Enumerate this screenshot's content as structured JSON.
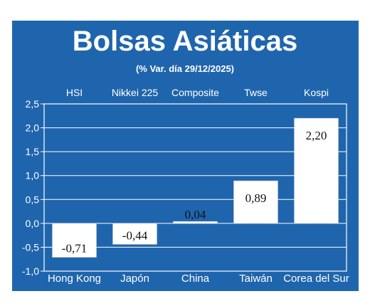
{
  "chart_data": {
    "type": "bar",
    "title": "Bolsas Asiáticas",
    "subtitle": "(% Var. día  29/12/2025)",
    "categories": [
      "Hong Kong",
      "Japón",
      "China",
      "Taiwán",
      "Corea del Sur"
    ],
    "index_names": [
      "HSI",
      "Nikkei 225",
      "Composite",
      "Twse",
      "Kospi"
    ],
    "values": [
      -0.71,
      -0.44,
      0.04,
      0.89,
      2.2
    ],
    "value_labels": [
      "-0,71",
      "-0,44",
      "0,04",
      "0,89",
      "2,20"
    ],
    "ylim": [
      -1.0,
      2.5
    ],
    "yticks": [
      2.5,
      2.0,
      1.5,
      1.0,
      0.5,
      0.0,
      -0.5,
      -1.0
    ],
    "ytick_labels": [
      "2,5",
      "2,0",
      "1,5",
      "1,0",
      "0,5",
      "0,0",
      "-0,5",
      "-1,0"
    ],
    "xlabel": "",
    "ylabel": "",
    "grid": true,
    "colors": {
      "background": "#1f65ad",
      "bar": "#ffffff",
      "text": "#ffffff",
      "value_text": "#111111"
    }
  }
}
